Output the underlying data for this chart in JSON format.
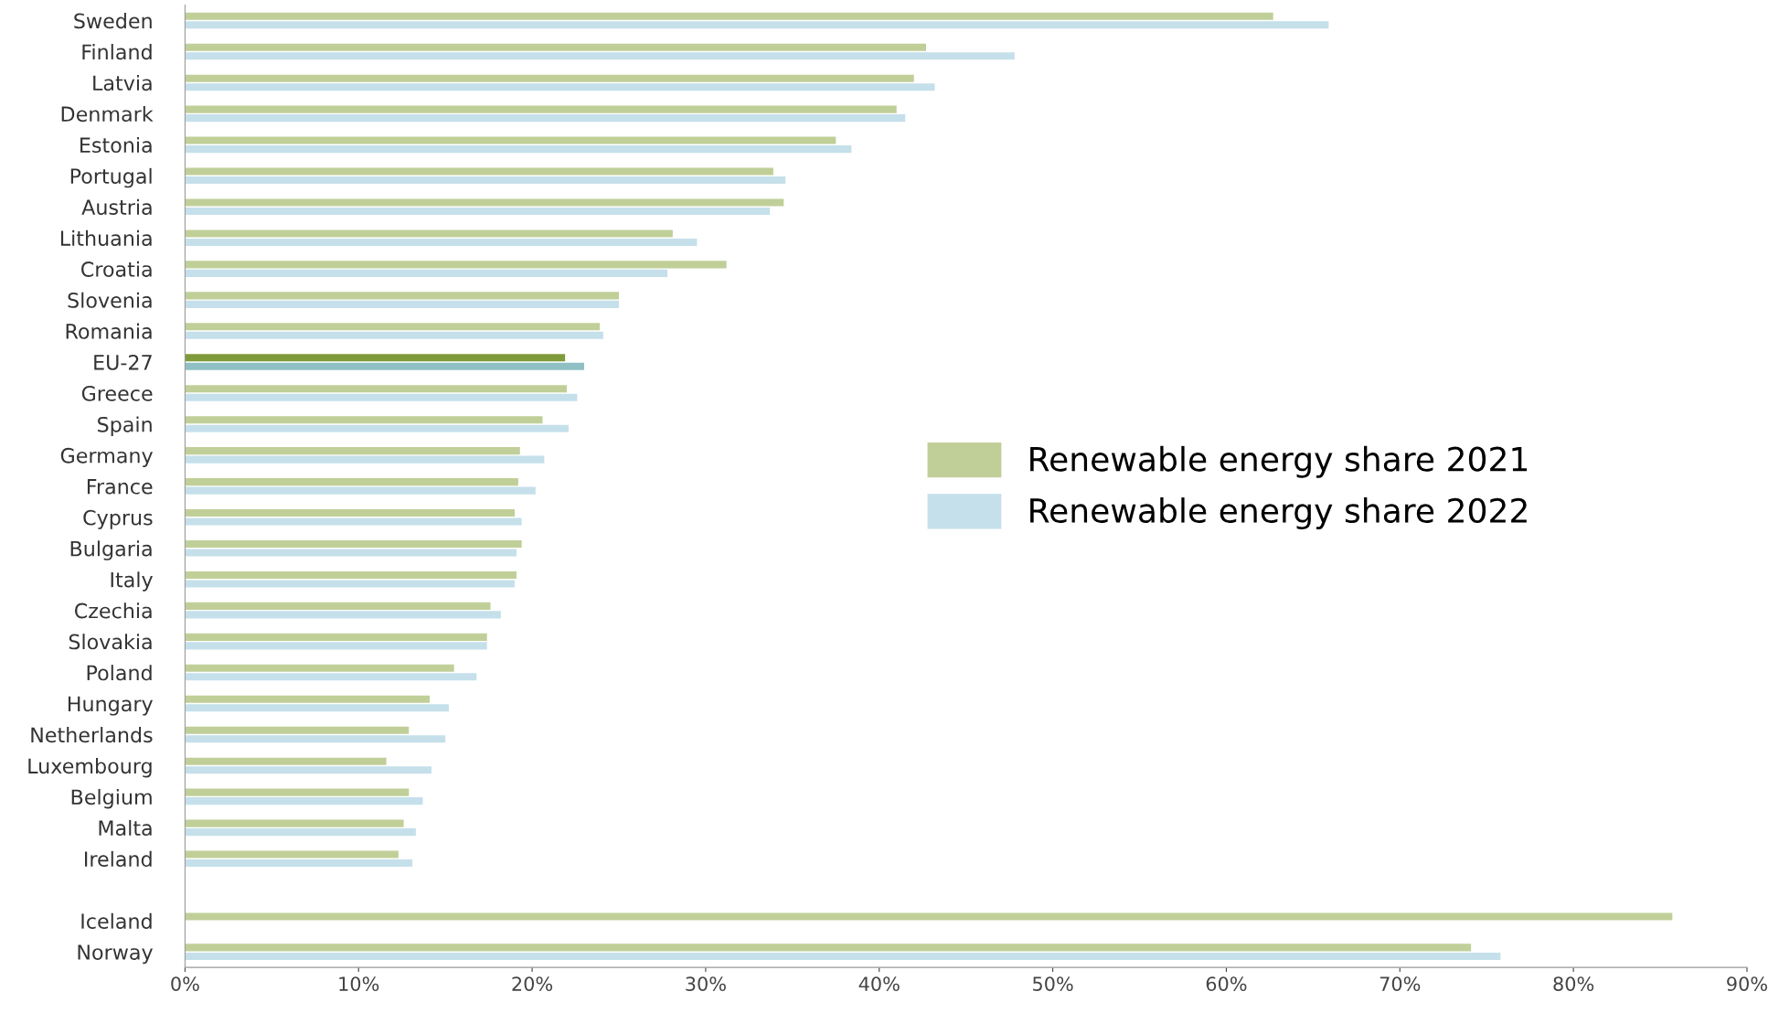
{
  "chart_data": {
    "type": "bar",
    "orientation": "horizontal",
    "categories": [
      "Sweden",
      "Finland",
      "Latvia",
      "Denmark",
      "Estonia",
      "Portugal",
      "Austria",
      "Lithuania",
      "Croatia",
      "Slovenia",
      "Romania",
      "EU-27",
      "Greece",
      "Spain",
      "Germany",
      "France",
      "Cyprus",
      "Bulgaria",
      "Italy",
      "Czechia",
      "Slovakia",
      "Poland",
      "Hungary",
      "Netherlands",
      "Luxembourg",
      "Belgium",
      "Malta",
      "Ireland",
      null,
      "Iceland",
      "Norway"
    ],
    "series": [
      {
        "name": "Renewable energy share 2021",
        "color": "#c0cf98",
        "colors": [
          "#c0cf98",
          "#c0cf98",
          "#c0cf98",
          "#c0cf98",
          "#c0cf98",
          "#c0cf98",
          "#c0cf98",
          "#c0cf98",
          "#c0cf98",
          "#c0cf98",
          "#c0cf98",
          "#7f9a3a",
          "#c0cf98",
          "#c0cf98",
          "#c0cf98",
          "#c0cf98",
          "#c0cf98",
          "#c0cf98",
          "#c0cf98",
          "#c0cf98",
          "#c0cf98",
          "#c0cf98",
          "#c0cf98",
          "#c0cf98",
          "#c0cf98",
          "#c0cf98",
          "#c0cf98",
          "#c0cf98",
          "#c0cf98",
          "#c0cf98",
          "#c0cf98"
        ],
        "values": [
          62.7,
          42.7,
          42.0,
          41.0,
          37.5,
          33.9,
          34.5,
          28.1,
          31.2,
          25.0,
          23.9,
          21.9,
          22.0,
          20.6,
          19.3,
          19.2,
          19.0,
          19.4,
          19.1,
          17.6,
          17.4,
          15.5,
          14.1,
          12.9,
          11.6,
          12.9,
          12.6,
          12.3,
          null,
          85.7,
          74.1
        ]
      },
      {
        "name": "Renewable energy share 2022",
        "color": "#c5e0ea",
        "colors": [
          "#c5e0ea",
          "#c5e0ea",
          "#c5e0ea",
          "#c5e0ea",
          "#c5e0ea",
          "#c5e0ea",
          "#c5e0ea",
          "#c5e0ea",
          "#c5e0ea",
          "#c5e0ea",
          "#c5e0ea",
          "#8fc0c4",
          "#c5e0ea",
          "#c5e0ea",
          "#c5e0ea",
          "#c5e0ea",
          "#c5e0ea",
          "#c5e0ea",
          "#c5e0ea",
          "#c5e0ea",
          "#c5e0ea",
          "#c5e0ea",
          "#c5e0ea",
          "#c5e0ea",
          "#c5e0ea",
          "#c5e0ea",
          "#c5e0ea",
          "#c5e0ea",
          "#c5e0ea",
          "#c5e0ea",
          "#c5e0ea"
        ],
        "values": [
          65.9,
          47.8,
          43.2,
          41.5,
          38.4,
          34.6,
          33.7,
          29.5,
          27.8,
          25.0,
          24.1,
          23.0,
          22.6,
          22.1,
          20.7,
          20.2,
          19.4,
          19.1,
          19.0,
          18.2,
          17.4,
          16.8,
          15.2,
          15.0,
          14.2,
          13.7,
          13.3,
          13.1,
          null,
          null,
          75.8
        ]
      }
    ],
    "xlim": [
      0,
      90
    ],
    "xticks": [
      {
        "value": 0,
        "label": "0%"
      },
      {
        "value": 10,
        "label": "10%"
      },
      {
        "value": 20,
        "label": "20%"
      },
      {
        "value": 30,
        "label": "30%"
      },
      {
        "value": 40,
        "label": "40%"
      },
      {
        "value": 50,
        "label": "50%"
      },
      {
        "value": 60,
        "label": "60%"
      },
      {
        "value": 70,
        "label": "70%"
      },
      {
        "value": 80,
        "label": "80%"
      },
      {
        "value": 90,
        "label": "90%"
      }
    ],
    "grid": false,
    "legend": "center right"
  }
}
